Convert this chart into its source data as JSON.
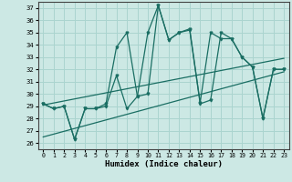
{
  "xlabel": "Humidex (Indice chaleur)",
  "bg_color": "#cce8e4",
  "line_color": "#1a6e63",
  "grid_color": "#aad4cf",
  "xlim": [
    -0.5,
    23.5
  ],
  "ylim": [
    25.5,
    37.5
  ],
  "xticks": [
    0,
    1,
    2,
    3,
    4,
    5,
    6,
    7,
    8,
    9,
    10,
    11,
    12,
    13,
    14,
    15,
    16,
    17,
    18,
    19,
    20,
    21,
    22,
    23
  ],
  "yticks": [
    26,
    27,
    28,
    29,
    30,
    31,
    32,
    33,
    34,
    35,
    36,
    37
  ],
  "series1_x": [
    0,
    1,
    2,
    3,
    4,
    5,
    6,
    7,
    8,
    9,
    10,
    11,
    12,
    13,
    14,
    15,
    16,
    17,
    18,
    19,
    20,
    21,
    22,
    23
  ],
  "series1_y": [
    29.2,
    28.8,
    29.0,
    26.3,
    28.8,
    28.8,
    29.2,
    33.8,
    35.0,
    29.8,
    30.0,
    37.2,
    34.4,
    35.0,
    35.3,
    29.3,
    35.0,
    34.5,
    34.5,
    33.0,
    32.2,
    28.0,
    32.0,
    32.0
  ],
  "series2_x": [
    0,
    1,
    2,
    3,
    4,
    5,
    6,
    7,
    8,
    9,
    10,
    11,
    12,
    13,
    14,
    15,
    16,
    17,
    18,
    19,
    20,
    21,
    22,
    23
  ],
  "series2_y": [
    29.2,
    28.8,
    29.0,
    26.3,
    28.8,
    28.8,
    29.0,
    31.5,
    28.8,
    29.8,
    35.0,
    37.2,
    34.4,
    35.0,
    35.2,
    29.2,
    29.5,
    35.0,
    34.5,
    33.0,
    32.2,
    28.0,
    32.0,
    32.0
  ],
  "line3_x": [
    0,
    23
  ],
  "line3_y": [
    29.1,
    32.9
  ],
  "line4_x": [
    0,
    23
  ],
  "line4_y": [
    26.5,
    31.8
  ]
}
